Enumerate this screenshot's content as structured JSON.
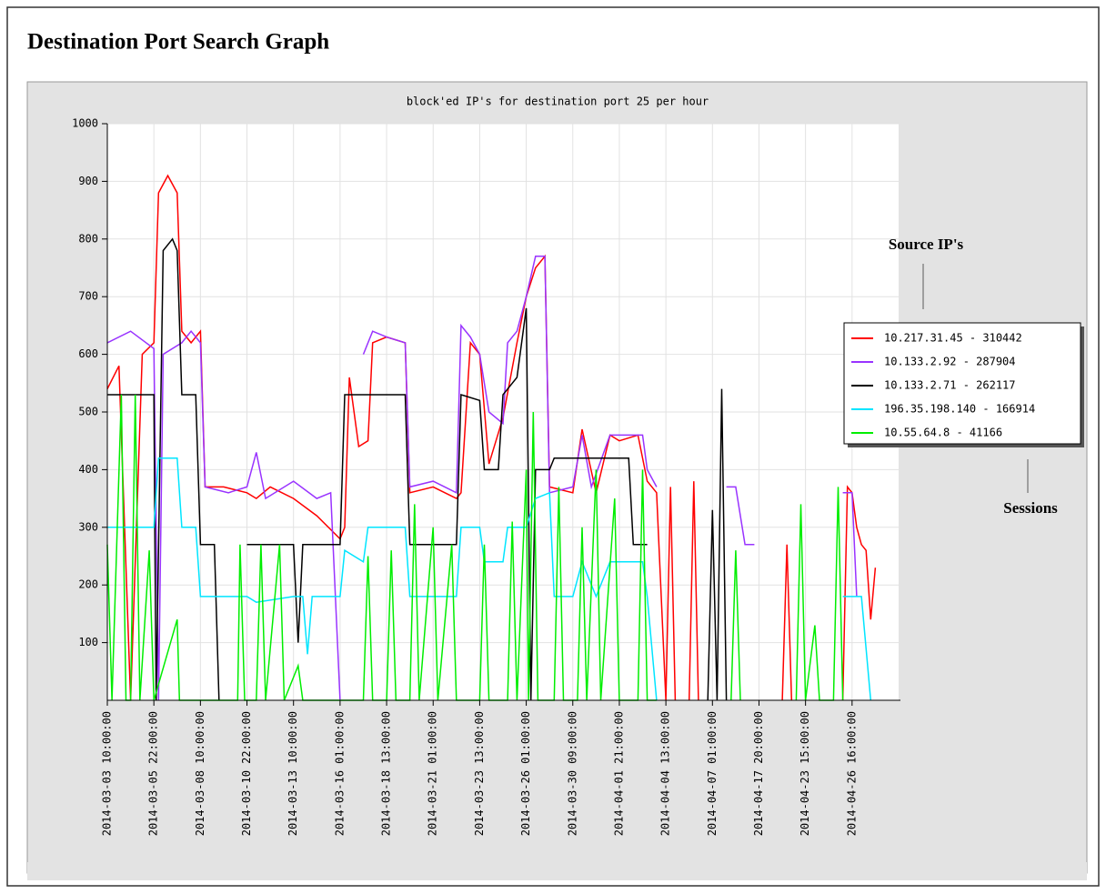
{
  "chart_data": {
    "type": "line",
    "page_title": "Destination Port Search Graph",
    "title": "block'ed IP's for destination port 25 per hour",
    "annotations": [
      "Source IP's",
      "Sessions"
    ],
    "xlim": [
      0,
      17
    ],
    "xticks": [
      {
        "value": 0,
        "label": "2014-03-03 10:00:00"
      },
      {
        "value": 1,
        "label": "2014-03-05 22:00:00"
      },
      {
        "value": 2,
        "label": "2014-03-08 10:00:00"
      },
      {
        "value": 3,
        "label": "2014-03-10 22:00:00"
      },
      {
        "value": 4,
        "label": "2014-03-13 10:00:00"
      },
      {
        "value": 5,
        "label": "2014-03-16 01:00:00"
      },
      {
        "value": 6,
        "label": "2014-03-18 13:00:00"
      },
      {
        "value": 7,
        "label": "2014-03-21 01:00:00"
      },
      {
        "value": 8,
        "label": "2014-03-23 13:00:00"
      },
      {
        "value": 9,
        "label": "2014-03-26 01:00:00"
      },
      {
        "value": 10,
        "label": "2014-03-30 09:00:00"
      },
      {
        "value": 11,
        "label": "2014-04-01 21:00:00"
      },
      {
        "value": 12,
        "label": "2014-04-04 13:00:00"
      },
      {
        "value": 13,
        "label": "2014-04-07 01:00:00"
      },
      {
        "value": 14,
        "label": "2014-04-17 20:00:00"
      },
      {
        "value": 15,
        "label": "2014-04-23 15:00:00"
      },
      {
        "value": 16,
        "label": "2014-04-26 16:00:00"
      }
    ],
    "ylim": [
      0,
      1000
    ],
    "yticks": [
      100,
      200,
      300,
      400,
      500,
      600,
      700,
      800,
      900,
      1000
    ],
    "grid": true,
    "legend": "right",
    "series": [
      {
        "name": "10.217.31.45 - 310442",
        "color": "#ff0000",
        "x": [
          0,
          0.25,
          0.5,
          0.75,
          1,
          1.1,
          1.3,
          1.5,
          1.6,
          1.8,
          2,
          2.1,
          2.5,
          3,
          3.2,
          3.5,
          4,
          4.5,
          5,
          5.1,
          5.2,
          5.4,
          5.6,
          5.7,
          6,
          6.4,
          6.5,
          7,
          7.5,
          7.6,
          7.8,
          8,
          8.2,
          8.5,
          8.8,
          9,
          9.2,
          9.4,
          9.5,
          10,
          10.2,
          10.5,
          10.8,
          11,
          11.4,
          11.6,
          11.8,
          12,
          12.1,
          12.2,
          12.3,
          12.5,
          12.6,
          12.7,
          13,
          14.5,
          14.6,
          14.7,
          15,
          15.8,
          15.9,
          16,
          16.1,
          16.2,
          16.3,
          16.4,
          16.5
        ],
        "values": [
          540,
          580,
          0,
          600,
          620,
          880,
          910,
          880,
          640,
          620,
          640,
          370,
          370,
          360,
          350,
          370,
          350,
          320,
          280,
          300,
          560,
          440,
          450,
          620,
          630,
          620,
          360,
          370,
          350,
          360,
          620,
          600,
          410,
          490,
          620,
          700,
          750,
          770,
          370,
          360,
          470,
          360,
          460,
          450,
          460,
          380,
          360,
          0,
          370,
          0,
          null,
          0,
          380,
          0,
          null,
          0,
          270,
          0,
          null,
          0,
          370,
          360,
          300,
          270,
          260,
          140,
          230
        ]
      },
      {
        "name": "10.133.2.92 - 287904",
        "color": "#9933ff",
        "x": [
          0,
          0.5,
          1,
          1.1,
          1.2,
          1.6,
          1.8,
          2,
          2.1,
          2.6,
          3,
          3.2,
          3.4,
          4,
          4.5,
          4.8,
          5,
          5.3,
          5.5,
          5.7,
          6,
          6.4,
          6.5,
          7,
          7.5,
          7.6,
          7.8,
          8,
          8.2,
          8.5,
          8.6,
          8.8,
          9,
          9.2,
          9.4,
          9.5,
          10,
          10.2,
          10.4,
          10.8,
          11,
          11.5,
          11.6,
          11.8,
          12,
          13.3,
          13.5,
          13.7,
          13.9,
          15,
          15.8,
          16,
          16.1
        ],
        "values": [
          620,
          640,
          610,
          0,
          600,
          620,
          640,
          620,
          370,
          360,
          370,
          430,
          350,
          380,
          350,
          360,
          0,
          null,
          600,
          640,
          630,
          620,
          370,
          380,
          360,
          650,
          630,
          600,
          500,
          480,
          620,
          640,
          700,
          770,
          770,
          360,
          370,
          460,
          370,
          460,
          460,
          460,
          400,
          370,
          null,
          370,
          370,
          270,
          270,
          null,
          360,
          360,
          180
        ]
      },
      {
        "name": "10.133.2.71 - 262117",
        "color": "#000000",
        "x": [
          0,
          0.5,
          1,
          1.05,
          1.2,
          1.4,
          1.5,
          1.6,
          1.9,
          2,
          2.3,
          2.4,
          2.7,
          3,
          4,
          4.1,
          4.2,
          5,
          5.1,
          6,
          6.4,
          6.5,
          7.5,
          7.6,
          8,
          8.1,
          8.4,
          8.5,
          8.8,
          9,
          9.1,
          9.2,
          9.5,
          9.6,
          11,
          11.2,
          11.3,
          11.6,
          12,
          12.9,
          13,
          13.1,
          13.2,
          13.3
        ],
        "values": [
          530,
          530,
          530,
          0,
          780,
          800,
          780,
          530,
          530,
          270,
          270,
          0,
          null,
          270,
          270,
          100,
          270,
          270,
          530,
          530,
          530,
          270,
          270,
          530,
          520,
          400,
          400,
          530,
          560,
          680,
          0,
          400,
          400,
          420,
          420,
          420,
          270,
          270,
          null,
          0,
          330,
          0,
          540,
          0
        ]
      },
      {
        "name": "196.35.198.140 - 166914",
        "color": "#00e5ff",
        "x": [
          0,
          1,
          1.1,
          1.5,
          1.6,
          1.9,
          2,
          3,
          3.2,
          4,
          4.2,
          4.3,
          4.4,
          5,
          5.1,
          5.5,
          5.6,
          6.4,
          6.5,
          7.5,
          7.6,
          8,
          8.1,
          8.5,
          8.6,
          9,
          9.2,
          9.5,
          9.6,
          10,
          10.2,
          10.5,
          10.8,
          11.5,
          11.6,
          11.8,
          12,
          15.8,
          16.2,
          16.4
        ],
        "values": [
          300,
          300,
          420,
          420,
          300,
          300,
          180,
          180,
          170,
          180,
          180,
          80,
          180,
          180,
          260,
          240,
          300,
          300,
          180,
          180,
          300,
          300,
          240,
          240,
          300,
          300,
          350,
          360,
          180,
          180,
          240,
          180,
          240,
          240,
          180,
          0,
          null,
          180,
          180,
          0
        ]
      },
      {
        "name": "10.55.64.8 - 41166",
        "color": "#00ee00",
        "x": [
          0,
          0.1,
          0.3,
          0.4,
          0.5,
          0.6,
          0.7,
          0.9,
          1,
          1.5,
          1.55,
          2.8,
          2.85,
          2.95,
          3.2,
          3.3,
          3.4,
          3.7,
          3.8,
          4.1,
          4.2,
          5.5,
          5.6,
          5.7,
          6,
          6.1,
          6.2,
          6.5,
          6.6,
          6.7,
          7,
          7.1,
          7.4,
          7.5,
          8,
          8.1,
          8.2,
          8.6,
          8.7,
          8.8,
          9,
          9.05,
          9.15,
          9.25,
          9.6,
          9.7,
          9.8,
          10.1,
          10.2,
          10.3,
          10.5,
          10.6,
          10.9,
          11,
          11.4,
          11.5,
          11.6,
          11.8,
          12,
          13.4,
          13.5,
          13.6,
          14,
          14.8,
          14.9,
          15,
          15.2,
          15.3,
          15.6,
          15.7,
          15.8
        ],
        "values": [
          270,
          0,
          530,
          0,
          0,
          530,
          0,
          260,
          0,
          140,
          0,
          0,
          270,
          0,
          0,
          270,
          0,
          270,
          0,
          60,
          0,
          0,
          250,
          0,
          0,
          260,
          0,
          0,
          340,
          0,
          300,
          0,
          270,
          0,
          0,
          270,
          0,
          0,
          310,
          0,
          400,
          0,
          500,
          0,
          0,
          370,
          0,
          0,
          300,
          0,
          400,
          0,
          350,
          0,
          0,
          400,
          0,
          0,
          null,
          0,
          260,
          0,
          null,
          0,
          340,
          0,
          130,
          0,
          0,
          370,
          0
        ]
      }
    ]
  }
}
